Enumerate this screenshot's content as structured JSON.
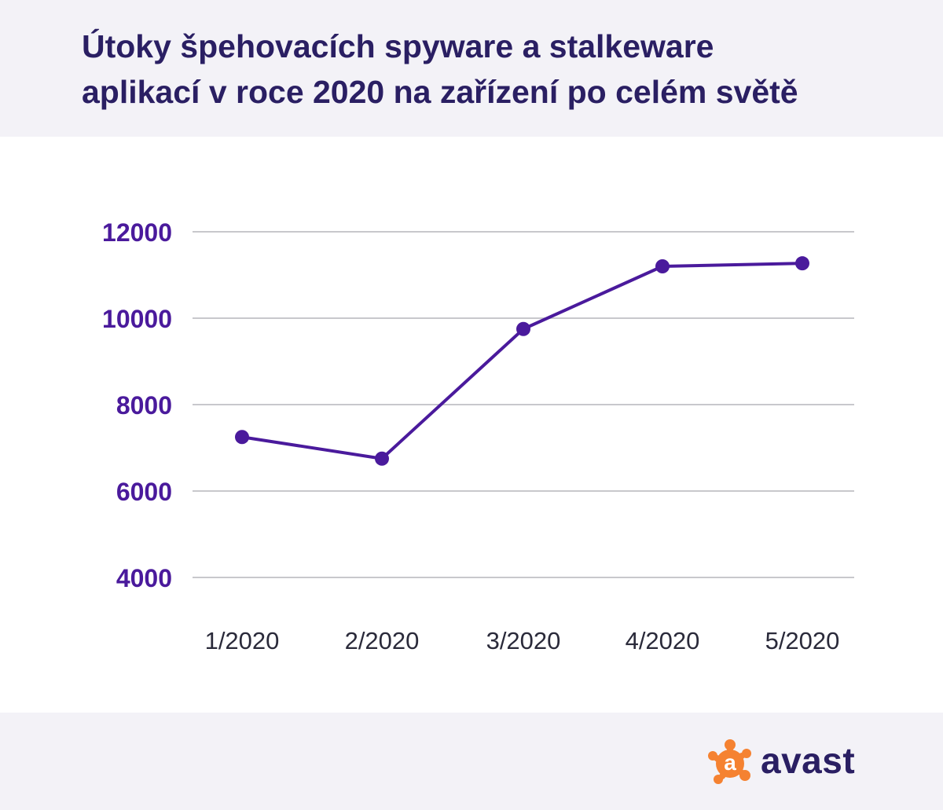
{
  "title_lines": [
    "Útoky špehovacích spyware a stalkeware",
    "aplikací v roce 2020 na zařízení po celém světě"
  ],
  "colors": {
    "accent": "#4a1a9c",
    "title": "#2a1f63",
    "grid": "#c8c8cc",
    "header_bg": "#f3f2f7",
    "logo_orange": "#f58231"
  },
  "chart_data": {
    "type": "line",
    "title": "Útoky špehovacích spyware a stalkeware aplikací v roce 2020 na zařízení po celém světě",
    "xlabel": "",
    "ylabel": "",
    "categories": [
      "1/2020",
      "2/2020",
      "3/2020",
      "4/2020",
      "5/2020"
    ],
    "series": [
      {
        "values": [
          7250,
          6750,
          9750,
          11200,
          11270
        ]
      }
    ],
    "ylim": [
      4000,
      12000
    ],
    "yticks": [
      "12000",
      "10000",
      "8000",
      "6000",
      "4000"
    ],
    "grid": true,
    "legend": "none"
  },
  "logo": {
    "text": "avast",
    "mark_letter": "a",
    "icon": "avast-splash-icon"
  }
}
